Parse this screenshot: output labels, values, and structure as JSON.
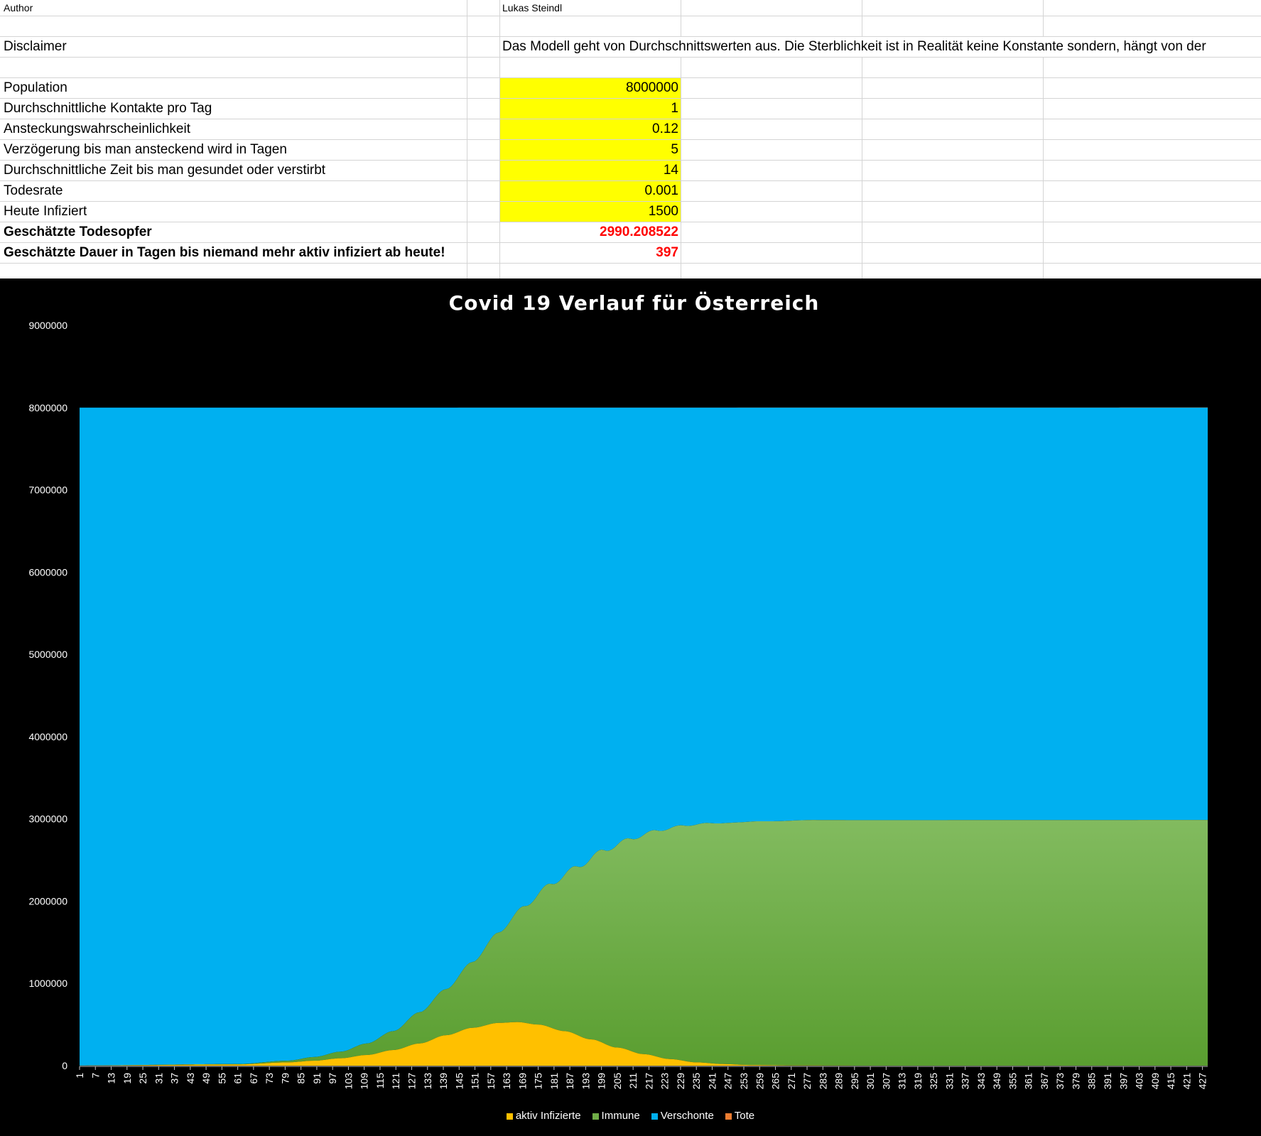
{
  "sheet": {
    "author_label": "Author",
    "author_value": "Lukas Steindl",
    "disclaimer_label": "Disclaimer",
    "disclaimer_value": "Das Modell geht von Durchschnittswerten aus. Die Sterblichkeit ist in Realität keine Konstante sondern, hängt von der",
    "params": [
      {
        "label": "Population",
        "value": "8000000"
      },
      {
        "label": "Durchschnittliche Kontakte pro Tag",
        "value": "1"
      },
      {
        "label": "Ansteckungswahrscheinlichkeit",
        "value": "0.12"
      },
      {
        "label": "Verzögerung bis man ansteckend wird in Tagen",
        "value": "5"
      },
      {
        "label": "Durchschnittliche Zeit bis man gesundet oder verstirbt",
        "value": "14"
      },
      {
        "label": "Todesrate",
        "value": "0.001"
      },
      {
        "label": "Heute Infiziert",
        "value": "1500"
      }
    ],
    "results": [
      {
        "label": "Geschätzte Todesopfer",
        "value": "2990.208522"
      },
      {
        "label": "Geschätzte Dauer in Tagen bis niemand mehr aktiv infiziert ab heute!",
        "value": "397"
      }
    ]
  },
  "colors": {
    "yellow_cell": "#ffff00",
    "result_red": "#ff0000",
    "infected": "#ffc000",
    "immune": "#70ad47",
    "spared": "#00b0f0",
    "dead": "#ed7d31"
  },
  "chart_data": {
    "type": "area",
    "stacked": true,
    "title": "Covid 19 Verlauf für Österreich",
    "xlabel": "",
    "ylabel": "",
    "x_range": [
      1,
      429
    ],
    "x_tick_start": 1,
    "x_tick_step": 6,
    "x_tick_labels": [
      "1",
      "7",
      "13",
      "19",
      "25",
      "31",
      "37",
      "43",
      "49",
      "55",
      "61",
      "67",
      "73",
      "79",
      "85",
      "91",
      "97",
      "103",
      "109",
      "115",
      "121",
      "127",
      "133",
      "139",
      "145",
      "151",
      "157",
      "163",
      "169",
      "175",
      "181",
      "187",
      "193",
      "199",
      "205",
      "211",
      "217",
      "223",
      "229",
      "235",
      "241",
      "247",
      "253",
      "259",
      "265",
      "271",
      "277",
      "283",
      "289",
      "295",
      "301",
      "307",
      "313",
      "319",
      "325",
      "331",
      "337",
      "343",
      "349",
      "355",
      "361",
      "367",
      "373",
      "379",
      "385",
      "391",
      "397",
      "403",
      "409",
      "415",
      "421",
      "427"
    ],
    "ylim": [
      0,
      9000000
    ],
    "y_ticks": [
      "0",
      "1000000",
      "2000000",
      "3000000",
      "4000000",
      "5000000",
      "6000000",
      "7000000",
      "8000000",
      "9000000"
    ],
    "grid": false,
    "legend_position": "bottom",
    "series": [
      {
        "name": "aktiv Infizierte",
        "x": [
          1,
          61,
          80,
          90,
          100,
          110,
          120,
          130,
          140,
          150,
          160,
          167,
          175,
          185,
          195,
          205,
          215,
          225,
          235,
          245,
          255,
          270,
          300,
          429
        ],
        "values": [
          1500,
          15000,
          40000,
          60000,
          90000,
          130000,
          190000,
          270000,
          370000,
          460000,
          520000,
          530000,
          500000,
          420000,
          320000,
          220000,
          140000,
          80000,
          40000,
          20000,
          8000,
          2500,
          300,
          0
        ]
      },
      {
        "name": "Immune",
        "x": [
          1,
          61,
          80,
          90,
          100,
          110,
          120,
          130,
          140,
          150,
          160,
          170,
          180,
          190,
          200,
          210,
          220,
          230,
          240,
          260,
          280,
          429
        ],
        "values": [
          0,
          5000,
          20000,
          45000,
          80000,
          140000,
          230000,
          380000,
          560000,
          800000,
          1100000,
          1420000,
          1750000,
          2050000,
          2350000,
          2580000,
          2750000,
          2860000,
          2920000,
          2965000,
          2985000,
          2987000
        ]
      },
      {
        "name": "Verschonte",
        "x": [
          1,
          429
        ],
        "values": [
          7998500,
          5010000
        ]
      },
      {
        "name": "Tote",
        "x": [
          1,
          429
        ],
        "values": [
          0,
          2990
        ]
      }
    ]
  },
  "legend": {
    "items": [
      {
        "label": "aktiv Infizierte",
        "color": "#ffc000"
      },
      {
        "label": "Immune",
        "color": "#70ad47"
      },
      {
        "label": "Verschonte",
        "color": "#00b0f0"
      },
      {
        "label": "Tote",
        "color": "#ed7d31"
      }
    ]
  }
}
